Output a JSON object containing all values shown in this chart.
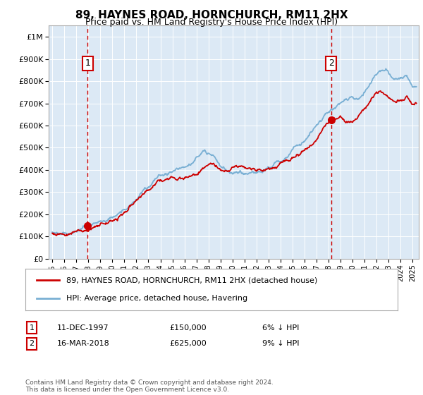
{
  "title": "89, HAYNES ROAD, HORNCHURCH, RM11 2HX",
  "subtitle": "Price paid vs. HM Land Registry's House Price Index (HPI)",
  "legend_line1": "89, HAYNES ROAD, HORNCHURCH, RM11 2HX (detached house)",
  "legend_line2": "HPI: Average price, detached house, Havering",
  "transaction1_date": "11-DEC-1997",
  "transaction1_price": "£150,000",
  "transaction1_hpi": "6% ↓ HPI",
  "transaction1_year": 1997.95,
  "transaction1_value": 150000,
  "transaction2_date": "16-MAR-2018",
  "transaction2_price": "£625,000",
  "transaction2_hpi": "9% ↓ HPI",
  "transaction2_year": 2018.21,
  "transaction2_value": 625000,
  "footer": "Contains HM Land Registry data © Crown copyright and database right 2024.\nThis data is licensed under the Open Government Licence v3.0.",
  "bg_color": "#dce9f5",
  "red_color": "#cc0000",
  "blue_color": "#7ab0d4",
  "ylim_max": 1050000,
  "xlim_start": 1994.7,
  "xlim_end": 2025.5,
  "hpi_years": [
    1995,
    1995.5,
    1996,
    1996.5,
    1997,
    1997.5,
    1998,
    1998.5,
    1999,
    1999.5,
    2000,
    2000.5,
    2001,
    2001.5,
    2002,
    2002.5,
    2003,
    2003.5,
    2004,
    2004.5,
    2005,
    2005.5,
    2006,
    2006.5,
    2007,
    2007.5,
    2008,
    2008.5,
    2009,
    2009.5,
    2010,
    2010.5,
    2011,
    2011.5,
    2012,
    2012.5,
    2013,
    2013.5,
    2014,
    2014.5,
    2015,
    2015.5,
    2016,
    2016.5,
    2017,
    2017.5,
    2018,
    2018.5,
    2019,
    2019.5,
    2020,
    2020.5,
    2021,
    2021.5,
    2022,
    2022.5,
    2023,
    2023.5,
    2024,
    2024.5,
    2025
  ],
  "hpi_values": [
    120000,
    123000,
    126000,
    130000,
    135000,
    140000,
    148000,
    155000,
    163000,
    172000,
    183000,
    196000,
    211000,
    228000,
    248000,
    272000,
    298000,
    320000,
    345000,
    358000,
    368000,
    375000,
    382000,
    395000,
    415000,
    440000,
    450000,
    435000,
    400000,
    375000,
    370000,
    375000,
    372000,
    365000,
    358000,
    362000,
    375000,
    392000,
    415000,
    435000,
    458000,
    478000,
    510000,
    535000,
    560000,
    590000,
    620000,
    640000,
    665000,
    685000,
    690000,
    695000,
    720000,
    760000,
    810000,
    830000,
    815000,
    790000,
    800000,
    815000,
    775000
  ],
  "prop_years": [
    1995,
    1995.5,
    1996,
    1996.5,
    1997,
    1997.5,
    1998,
    1997.95,
    1999,
    1999.5,
    2000,
    2000.5,
    2001,
    2001.5,
    2002,
    2002.5,
    2003,
    2003.5,
    2004,
    2004.5,
    2005,
    2005.5,
    2006,
    2006.5,
    2007,
    2007.5,
    2008,
    2008.5,
    2009,
    2009.5,
    2010,
    2010.5,
    2011,
    2011.5,
    2012,
    2012.5,
    2013,
    2013.5,
    2014,
    2014.5,
    2015,
    2015.5,
    2016,
    2016.5,
    2017,
    2017.5,
    2018,
    2018.21,
    2019,
    2019.5,
    2020,
    2020.5,
    2021,
    2021.5,
    2022,
    2022.5,
    2023,
    2023.5,
    2024,
    2024.5,
    2025
  ],
  "prop_values": [
    115000,
    118000,
    122000,
    127000,
    132000,
    138000,
    145000,
    150000,
    158000,
    167000,
    177000,
    190000,
    204000,
    220000,
    238000,
    258000,
    280000,
    305000,
    325000,
    338000,
    347000,
    354000,
    360000,
    372000,
    388000,
    408000,
    418000,
    400000,
    370000,
    350000,
    345000,
    348000,
    345000,
    340000,
    335000,
    340000,
    352000,
    368000,
    388000,
    405000,
    425000,
    445000,
    470000,
    495000,
    520000,
    560000,
    610000,
    625000,
    620000,
    605000,
    600000,
    620000,
    655000,
    690000,
    740000,
    745000,
    728000,
    710000,
    720000,
    730000,
    700000
  ]
}
